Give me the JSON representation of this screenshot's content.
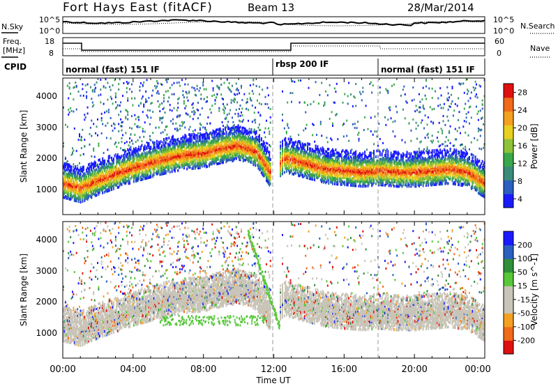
{
  "header": {
    "station": "Fort Hays East (fitACF)",
    "beam": "Beam 13",
    "date": "28/Mar/2014"
  },
  "panel_labels": {
    "nsky": "N.Sky",
    "nsearch": "N.Search",
    "freq_line1": "Freq.",
    "freq_line2": "[MHz]",
    "nave": "Nave",
    "cpid": "CPID"
  },
  "noise_axis": {
    "left_top": "10^5",
    "left_bottom": "10^0",
    "right_top": "10^5",
    "right_bottom": "10^0"
  },
  "freq_axis": {
    "left_top": "18",
    "left_bottom": "8",
    "right_top": "60",
    "right_bottom": "0"
  },
  "cpid_segments": [
    {
      "label": "normal (fast) 151 IF",
      "start_hour": 0
    },
    {
      "label": "rbsp 200 IF",
      "start_hour": 12.0
    },
    {
      "label": "normal (fast) 151 IF",
      "start_hour": 18.0
    }
  ],
  "colors": {
    "power_scale": [
      "#1a1aff",
      "#2a5fc0",
      "#3a8a7a",
      "#3aa84a",
      "#8ec23a",
      "#e8d020",
      "#f4a020",
      "#f06a1a",
      "#e01010"
    ],
    "velocity_scale": [
      "#e01010",
      "#f06a1a",
      "#f4a020",
      "#c8c4b8",
      "#c8c4b8",
      "#58c83a",
      "#2f8f3a",
      "#2a5fc0",
      "#1a1aff"
    ],
    "ground_scatter": "#c8c4b8"
  },
  "chart_data": [
    {
      "type": "heatmap",
      "name": "power",
      "ylabel": "Slant Range [km]",
      "yticks": [
        "1000",
        "2000",
        "3000",
        "4000"
      ],
      "colorbar_label": "Power [dB]",
      "colorbar_ticks": [
        "4",
        "8",
        "12",
        "16",
        "20",
        "24",
        "28"
      ],
      "colorbar_range": [
        0,
        30
      ],
      "ylim": [
        180,
        4500
      ],
      "ridge_km": [
        [
          0,
          1150
        ],
        [
          1,
          1000
        ],
        [
          2,
          1250
        ],
        [
          3,
          1450
        ],
        [
          4,
          1650
        ],
        [
          5,
          1800
        ],
        [
          6,
          1950
        ],
        [
          7,
          2050
        ],
        [
          8,
          2100
        ],
        [
          9,
          2250
        ],
        [
          10,
          2350
        ],
        [
          11,
          2150
        ],
        [
          12,
          1300
        ],
        [
          12.5,
          1950
        ],
        [
          13,
          1900
        ],
        [
          14,
          1750
        ],
        [
          15,
          1600
        ],
        [
          16,
          1550
        ],
        [
          17,
          1500
        ],
        [
          18,
          1550
        ],
        [
          19,
          1500
        ],
        [
          20,
          1500
        ],
        [
          21,
          1550
        ],
        [
          22,
          1600
        ],
        [
          23,
          1500
        ],
        [
          24,
          1150
        ]
      ]
    },
    {
      "type": "heatmap",
      "name": "velocity",
      "ylabel": "Slant Range [km]",
      "yticks": [
        "1000",
        "2000",
        "3000",
        "4000"
      ],
      "colorbar_label": "Velocity [m s^-1]",
      "colorbar_ticks": [
        "200",
        "100",
        "50",
        "15",
        "-15",
        "-50",
        "-100",
        "-200"
      ],
      "colorbar_range": [
        -250,
        250
      ],
      "ylim": [
        180,
        4500
      ],
      "xlabel": "Time UT",
      "xticks": [
        "00:00",
        "04:00",
        "08:00",
        "12:00",
        "16:00",
        "20:00",
        "00:00"
      ],
      "xlim_hours": [
        0,
        24
      ]
    }
  ]
}
